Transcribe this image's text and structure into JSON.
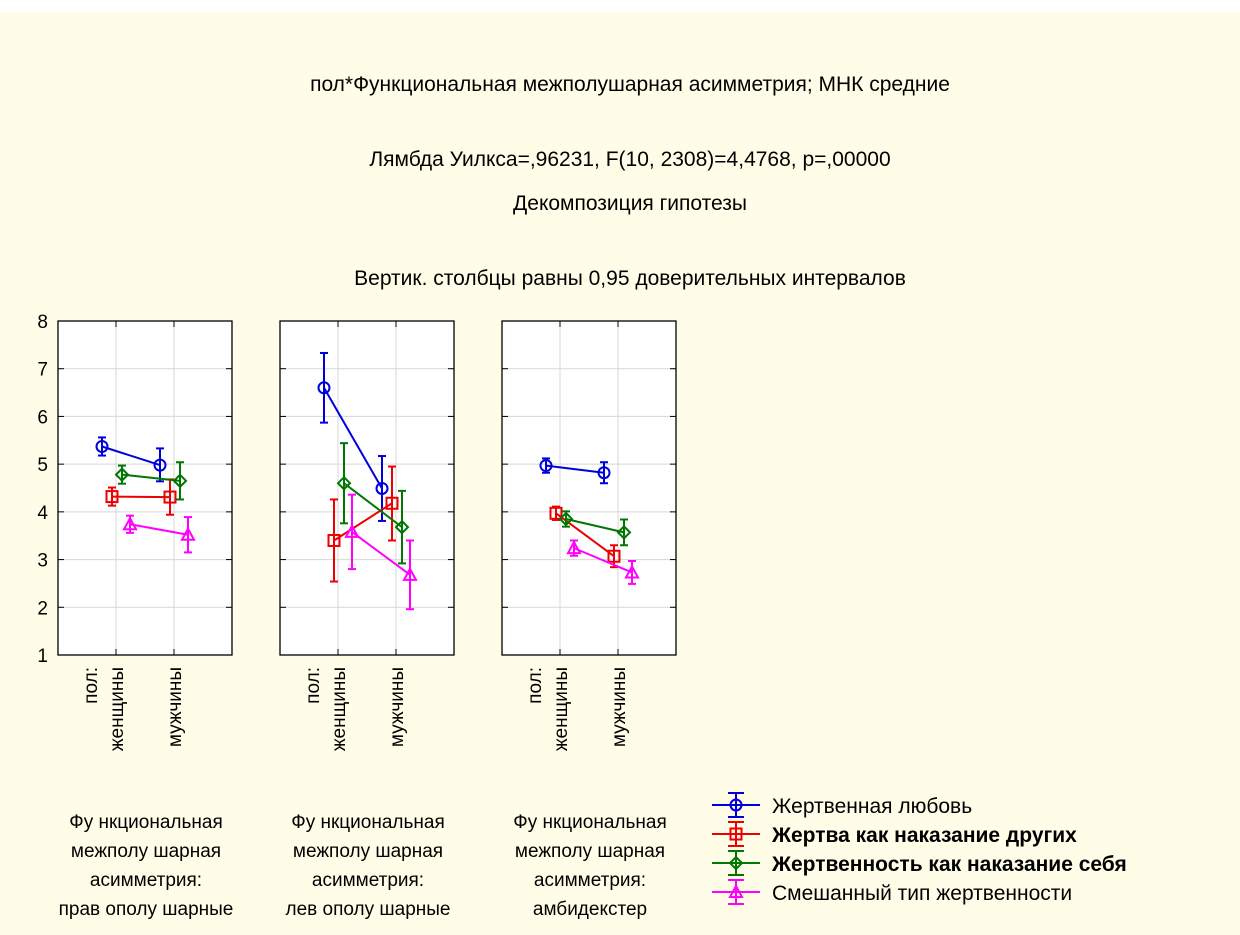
{
  "chart_data": {
    "type": "line",
    "title": "пол*Функциональная межполушарная асимметрия; МНК средние",
    "subtitle_1": "Лямбда Уилкса=,96231, F(10, 2308)=4,4768, p=,00000",
    "subtitle_2": "Декомпозиция гипотезы",
    "subtitle_3": "Вертик. столбцы равны 0,95 доверительных интервалов",
    "ylim": [
      1,
      8
    ],
    "yticks": [
      "1",
      "2",
      "3",
      "4",
      "5",
      "6",
      "7",
      "8"
    ],
    "grid": true,
    "legend_position": "bottom-right",
    "x_factor_label": "пол:",
    "categories": [
      "женщины",
      "мужчины"
    ],
    "panels": [
      {
        "label_lines": [
          "Фу нкциональная",
          "межполу шарная",
          "асимметрия:",
          "прав ополу шарные"
        ],
        "series": [
          {
            "name": "Жертвенная любовь",
            "values": [
              5.37,
              4.98
            ],
            "lower": [
              5.18,
              4.64
            ],
            "upper": [
              5.56,
              5.33
            ]
          },
          {
            "name": "Жертва как наказание других",
            "values": [
              4.32,
              4.31
            ],
            "lower": [
              4.13,
              3.94
            ],
            "upper": [
              4.51,
              4.68
            ]
          },
          {
            "name": "Жертвенность как наказание себя",
            "values": [
              4.78,
              4.65
            ],
            "lower": [
              4.59,
              4.26
            ],
            "upper": [
              4.97,
              5.04
            ]
          },
          {
            "name": "Смешанный тип жертвенности",
            "values": [
              3.74,
              3.52
            ],
            "lower": [
              3.56,
              3.15
            ],
            "upper": [
              3.92,
              3.89
            ]
          }
        ]
      },
      {
        "label_lines": [
          "Фу нкциональная",
          "межполу шарная",
          "асимметрия:",
          "лев ополу шарные"
        ],
        "series": [
          {
            "name": "Жертвенная любовь",
            "values": [
              6.6,
              4.49
            ],
            "lower": [
              5.87,
              3.81
            ],
            "upper": [
              7.33,
              5.17
            ]
          },
          {
            "name": "Жертва как наказание других",
            "values": [
              3.4,
              4.18
            ],
            "lower": [
              2.54,
              3.4
            ],
            "upper": [
              4.26,
              4.95
            ]
          },
          {
            "name": "Жертвенность как наказание себя",
            "values": [
              4.6,
              3.68
            ],
            "lower": [
              3.76,
              2.92
            ],
            "upper": [
              5.44,
              4.44
            ]
          },
          {
            "name": "Смешанный тип жертвенности",
            "values": [
              3.58,
              2.68
            ],
            "lower": [
              2.8,
              1.96
            ],
            "upper": [
              4.36,
              3.4
            ]
          }
        ]
      },
      {
        "label_lines": [
          "Фу нкциональная",
          "межполу шарная",
          "асимметрия:",
          "амбидекстер"
        ],
        "series": [
          {
            "name": "Жертвенная любовь",
            "values": [
              4.97,
              4.82
            ],
            "lower": [
              4.82,
              4.6
            ],
            "upper": [
              5.12,
              5.04
            ]
          },
          {
            "name": "Жертва как наказание других",
            "values": [
              3.97,
              3.07
            ],
            "lower": [
              3.83,
              2.84
            ],
            "upper": [
              4.11,
              3.3
            ]
          },
          {
            "name": "Жертвенность как наказание себя",
            "values": [
              3.85,
              3.57
            ],
            "lower": [
              3.69,
              3.3
            ],
            "upper": [
              4.01,
              3.84
            ]
          },
          {
            "name": "Смешанный тип жертвенности",
            "values": [
              3.24,
              2.73
            ],
            "lower": [
              3.08,
              2.49
            ],
            "upper": [
              3.4,
              2.97
            ]
          }
        ]
      }
    ],
    "legend": [
      {
        "name": "Жертвенная любовь",
        "color": "#0000dd",
        "marker": "circle",
        "bold": false
      },
      {
        "name": "Жертва как наказание других",
        "color": "#ee0000",
        "marker": "square",
        "bold": true
      },
      {
        "name": "Жертвенность как наказание себя",
        "color": "#007700",
        "marker": "diamond",
        "bold": true
      },
      {
        "name": "Смешанный тип жертвенности",
        "color": "#ff00ff",
        "marker": "triangle",
        "bold": false
      }
    ]
  }
}
